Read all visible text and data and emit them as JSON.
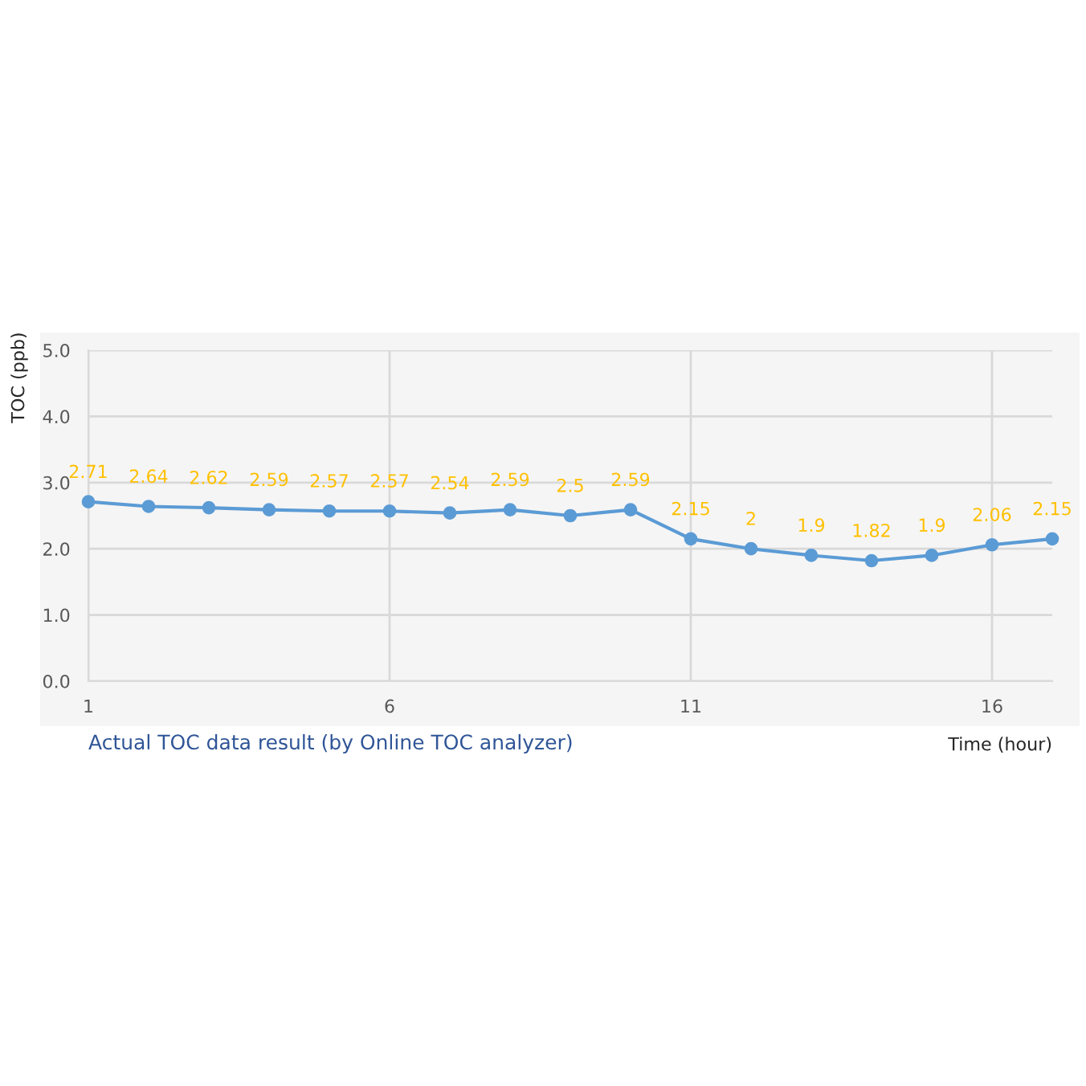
{
  "chart_data": {
    "type": "line",
    "x": [
      1,
      2,
      3,
      4,
      5,
      6,
      7,
      8,
      9,
      10,
      11,
      12,
      13,
      14,
      15,
      16,
      17
    ],
    "series": [
      {
        "color": "#5b9bd5",
        "values": [
          2.71,
          2.64,
          2.62,
          2.59,
          2.57,
          2.57,
          2.54,
          2.59,
          2.5,
          2.59,
          2.15,
          2,
          1.9,
          1.82,
          1.9,
          2.06,
          2.15
        ],
        "value_labels": [
          "2.71",
          "2.64",
          "2.62",
          "2.59",
          "2.57",
          "2.57",
          "2.54",
          "2.59",
          "2.5",
          "2.59",
          "2.15",
          "2",
          "1.9",
          "1.82",
          "1.9",
          "2.06",
          "2.15"
        ]
      }
    ],
    "xlim": [
      1,
      17
    ],
    "xticks": [
      1,
      6,
      11,
      16
    ],
    "ylim": [
      0,
      5
    ],
    "yticks": [
      {
        "value": 0,
        "label": "0.0"
      },
      {
        "value": 1,
        "label": "1.0"
      },
      {
        "value": 2,
        "label": "2.0"
      },
      {
        "value": 3,
        "label": "3.0"
      },
      {
        "value": 4,
        "label": "4.0"
      },
      {
        "value": 5,
        "label": "5.0"
      }
    ],
    "ylabel": "TOC (ppb)",
    "xlabel": "Time (hour)",
    "annotations": [
      "Actual TOC data result (by Online TOC analyzer)"
    ],
    "grid": true,
    "marker": "circle",
    "line_style": "solid",
    "legend": false
  }
}
